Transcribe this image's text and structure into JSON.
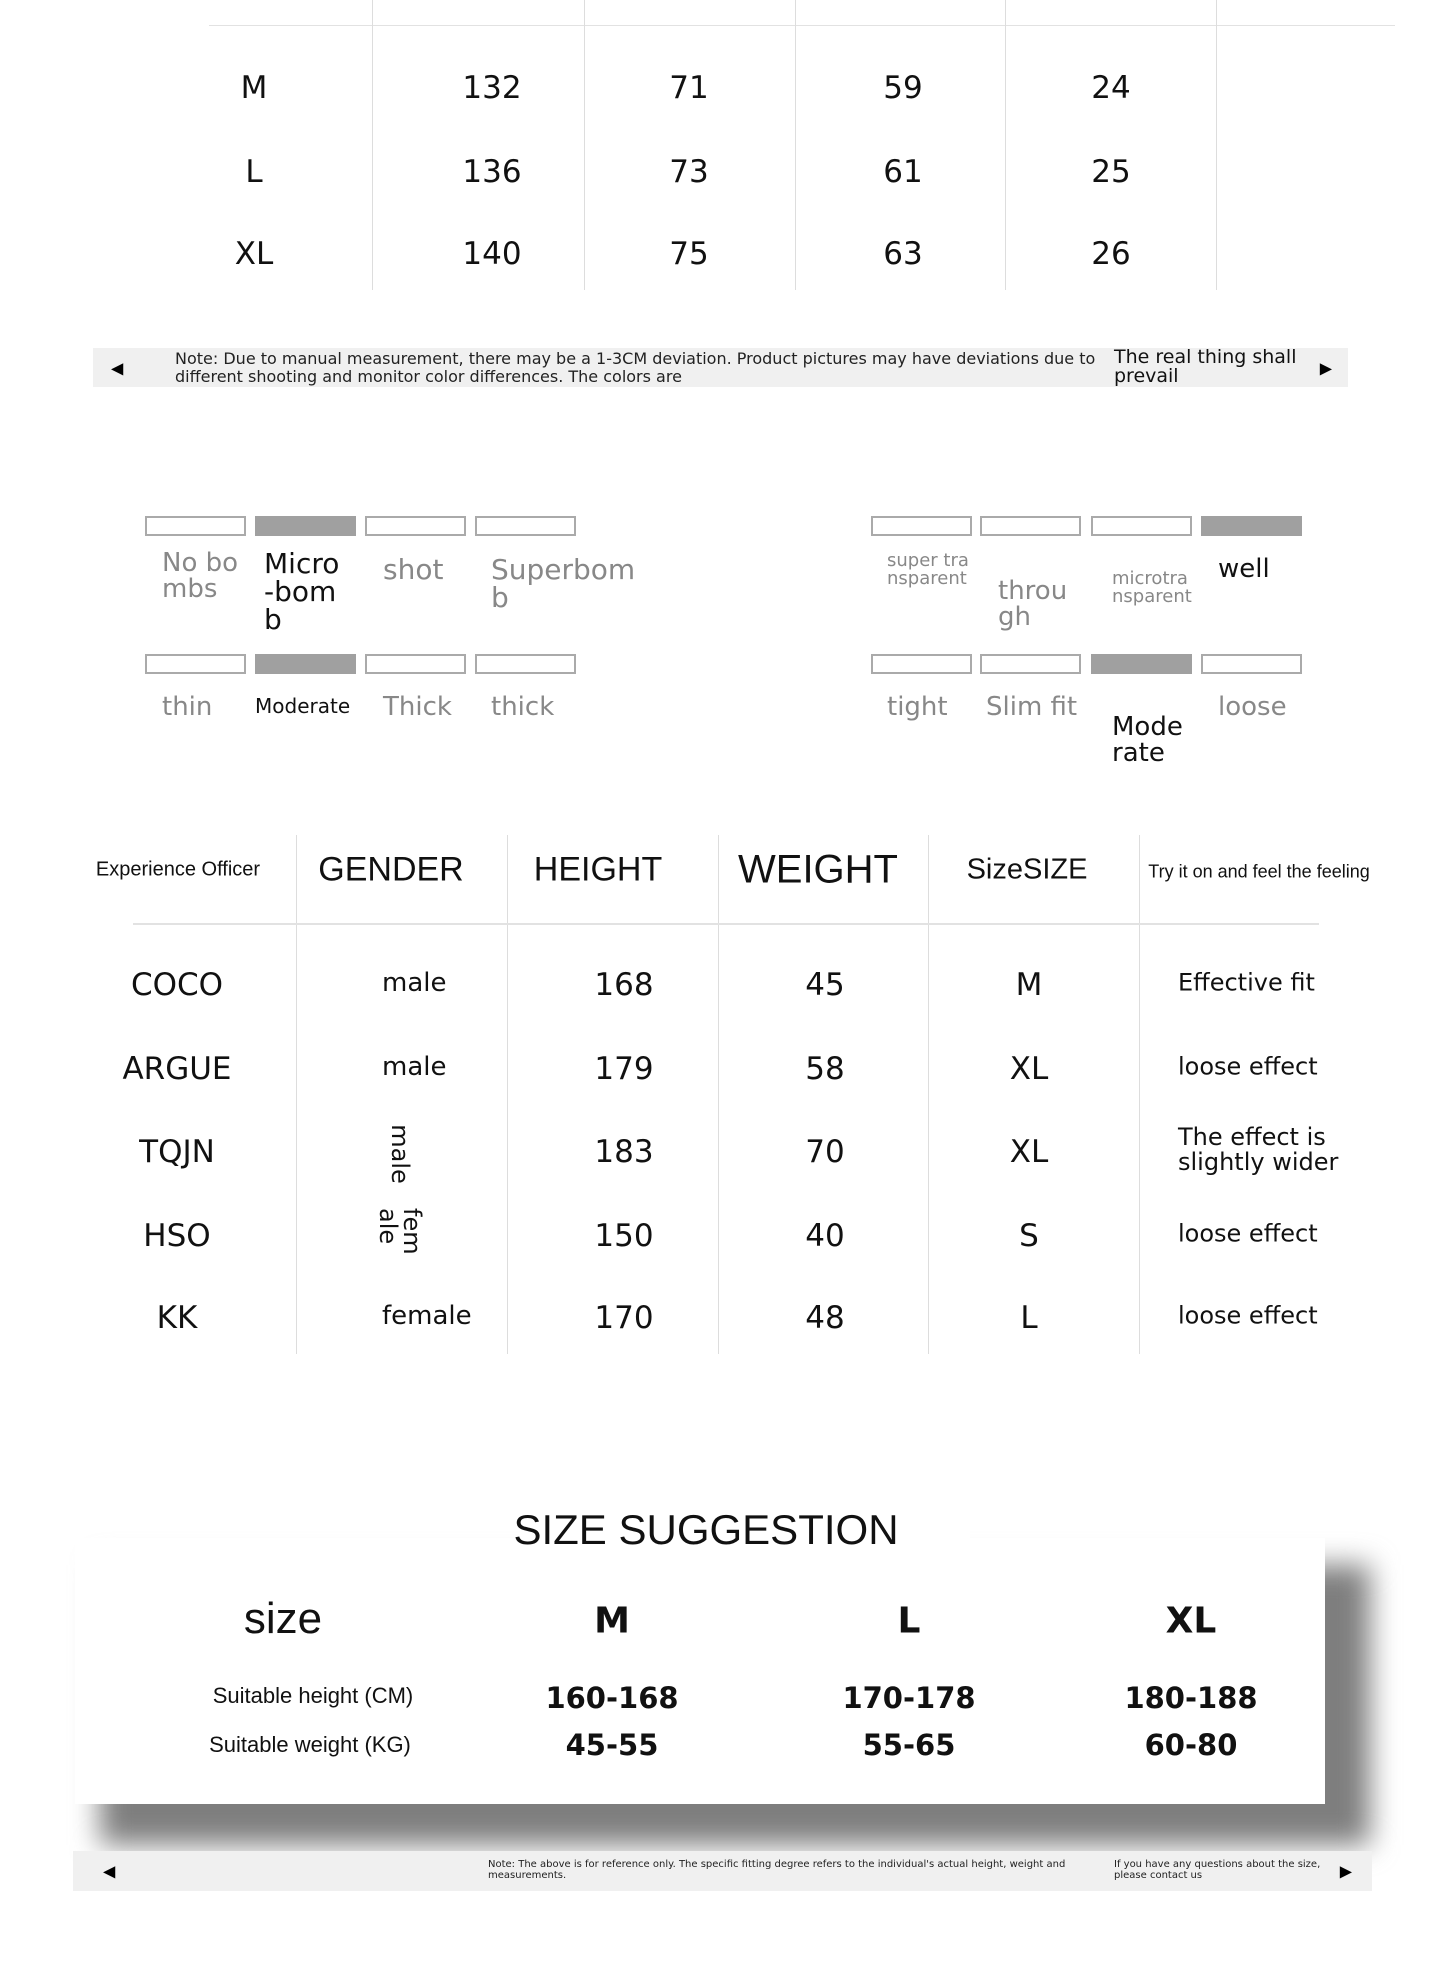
{
  "size_table": {
    "rows": [
      {
        "size": "M",
        "values": [
          "132",
          "71",
          "59",
          "24"
        ]
      },
      {
        "size": "L",
        "values": [
          "136",
          "73",
          "61",
          "25"
        ]
      },
      {
        "size": "XL",
        "values": [
          "140",
          "75",
          "63",
          "26"
        ]
      }
    ]
  },
  "note_bar_1": {
    "text": "Note: Due to manual measurement, there may be a 1-3CM deviation. Product pictures may have deviations due to different shooting and monitor color differences. The colors are",
    "text_right": "The real thing shall prevail",
    "prev_icon": "triangle-left",
    "next_icon": "triangle-right"
  },
  "indicators": {
    "elasticity": {
      "labels": [
        "No bombs",
        "Micro-bomb",
        "shot",
        "Superbomb"
      ],
      "selected_index": 1
    },
    "transparency": {
      "labels": [
        "super transparent",
        "through",
        "microtransparent",
        "well"
      ],
      "selected_index": 3
    },
    "thickness": {
      "labels": [
        "thin",
        "Moderate",
        "Thick",
        "thick"
      ],
      "selected_index": 1
    },
    "fit": {
      "labels": [
        "tight",
        "Slim fit",
        "Moderate",
        "loose"
      ],
      "selected_index": 2
    },
    "active_color": "#a0a0a0"
  },
  "experience": {
    "headers": [
      "Experience Officer",
      "GENDER",
      "HEIGHT",
      "WEIGHT",
      "SizeSIZE",
      "Try it on and feel the feeling"
    ],
    "rows": [
      [
        "COCO",
        "male",
        "168",
        "45",
        "M",
        "Effective fit"
      ],
      [
        "ARGUE",
        "male",
        "179",
        "58",
        "XL",
        "loose effect"
      ],
      [
        "TQJN",
        "male",
        "183",
        "70",
        "XL",
        "The effect is slightly wider"
      ],
      [
        "HSO",
        "female",
        "150",
        "40",
        "S",
        "loose effect"
      ],
      [
        "KK",
        "female",
        "170",
        "48",
        "L",
        "loose effect"
      ]
    ]
  },
  "suggestion": {
    "title": "SIZE SUGGESTION",
    "size_label": "size",
    "sizes": [
      "M",
      "L",
      "XL"
    ],
    "height_label": "Suitable height (CM)",
    "heights": [
      "160-168",
      "170-178",
      "180-188"
    ],
    "weight_label": "Suitable weight (KG)",
    "weights": [
      "45-55",
      "55-65",
      "60-80"
    ]
  },
  "note_bar_2": {
    "text": "Note: The above is for reference only. The specific fitting degree refers to the individual's actual height, weight and measurements.",
    "text_right": "If you have any questions about the size, please contact us"
  }
}
